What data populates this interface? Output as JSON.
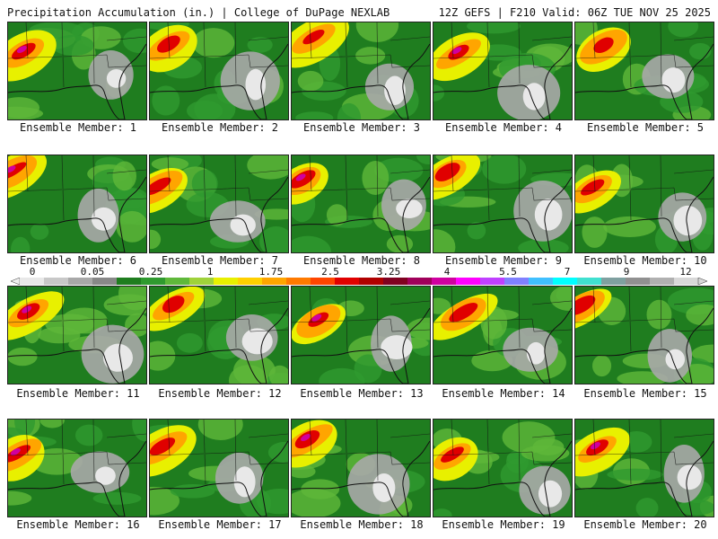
{
  "header": {
    "title": "Precipitation Accumulation (in.) | College of DuPage NEXLAB",
    "run_info": "12Z GEFS | F210 Valid: 06Z TUE NOV 25 2025"
  },
  "colorbar": {
    "labels": [
      "0",
      "0.05",
      "0.25",
      "1",
      "1.75",
      "2.5",
      "3.25",
      "4",
      "5.5",
      "7",
      "9",
      "12"
    ],
    "colors": [
      "#e8e8e8",
      "#c8c8c8",
      "#a8a8a8",
      "#888888",
      "#1f7d1f",
      "#2f9a2f",
      "#5fb83a",
      "#9fd23a",
      "#e8f000",
      "#ffd000",
      "#ffa500",
      "#ff7a00",
      "#ff4500",
      "#e00000",
      "#b00000",
      "#800020",
      "#a0005a",
      "#d000a0",
      "#ff00ff",
      "#c040ff",
      "#8080ff",
      "#40c0ff",
      "#00ffff",
      "#40e0d0",
      "#7fa0a0",
      "#909090",
      "#b0b0b0",
      "#d8d8d8"
    ]
  },
  "members": [
    {
      "label": "Ensemble Member: 1"
    },
    {
      "label": "Ensemble Member: 2"
    },
    {
      "label": "Ensemble Member: 3"
    },
    {
      "label": "Ensemble Member: 4"
    },
    {
      "label": "Ensemble Member: 5"
    },
    {
      "label": "Ensemble Member: 6"
    },
    {
      "label": "Ensemble Member: 7"
    },
    {
      "label": "Ensemble Member: 8"
    },
    {
      "label": "Ensemble Member: 9"
    },
    {
      "label": "Ensemble Member: 10"
    },
    {
      "label": "Ensemble Member: 11"
    },
    {
      "label": "Ensemble Member: 12"
    },
    {
      "label": "Ensemble Member: 13"
    },
    {
      "label": "Ensemble Member: 14"
    },
    {
      "label": "Ensemble Member: 15"
    },
    {
      "label": "Ensemble Member: 16"
    },
    {
      "label": "Ensemble Member: 17"
    },
    {
      "label": "Ensemble Member: 18"
    },
    {
      "label": "Ensemble Member: 19"
    },
    {
      "label": "Ensemble Member: 20"
    }
  ]
}
